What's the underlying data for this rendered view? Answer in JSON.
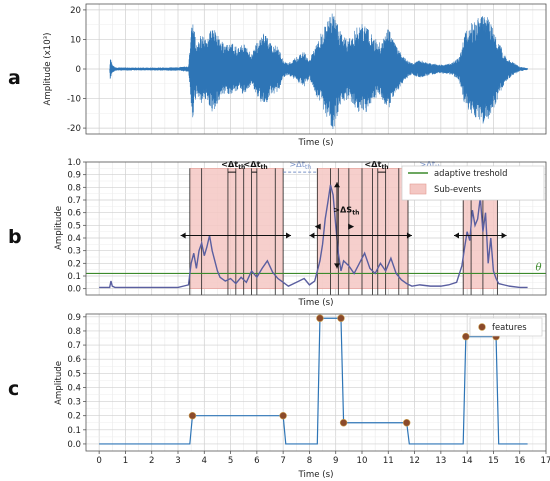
{
  "chart_data": [
    {
      "panel": "a",
      "type": "line",
      "xlabel": "Time (s)",
      "ylabel": "Amplitude (x10³)",
      "ylim": [
        -22,
        22
      ],
      "yticks": [
        -20,
        -10,
        0,
        10,
        20
      ],
      "xlim": [
        -0.5,
        17
      ],
      "grid": true,
      "series": [
        {
          "color": "#2e75b6",
          "envelope": [
            [
              0.4,
              0.0
            ],
            [
              0.42,
              4.5
            ],
            [
              0.5,
              1.5
            ],
            [
              0.6,
              0.6
            ],
            [
              1.0,
              0.5
            ],
            [
              2.0,
              0.5
            ],
            [
              3.0,
              0.6
            ],
            [
              3.4,
              1.0
            ],
            [
              3.55,
              18.0
            ],
            [
              3.7,
              8.0
            ],
            [
              3.9,
              12.0
            ],
            [
              4.1,
              10.0
            ],
            [
              4.3,
              15.0
            ],
            [
              4.5,
              12.0
            ],
            [
              4.8,
              8.0
            ],
            [
              5.0,
              9.0
            ],
            [
              5.3,
              7.0
            ],
            [
              5.5,
              9.0
            ],
            [
              5.8,
              5.0
            ],
            [
              6.0,
              9.0
            ],
            [
              6.3,
              13.0
            ],
            [
              6.5,
              9.0
            ],
            [
              6.8,
              8.0
            ],
            [
              7.0,
              3.0
            ],
            [
              7.2,
              2.0
            ],
            [
              7.5,
              4.0
            ],
            [
              7.8,
              6.0
            ],
            [
              8.0,
              3.0
            ],
            [
              8.2,
              8.0
            ],
            [
              8.5,
              13.0
            ],
            [
              8.7,
              17.0
            ],
            [
              8.9,
              21.0
            ],
            [
              9.05,
              16.0
            ],
            [
              9.2,
              12.0
            ],
            [
              9.5,
              10.0
            ],
            [
              9.8,
              14.0
            ],
            [
              10.1,
              16.0
            ],
            [
              10.4,
              11.0
            ],
            [
              10.7,
              9.0
            ],
            [
              11.0,
              14.0
            ],
            [
              11.3,
              8.0
            ],
            [
              11.6,
              4.0
            ],
            [
              11.9,
              2.0
            ],
            [
              12.2,
              3.0
            ],
            [
              12.6,
              2.0
            ],
            [
              13.0,
              1.5
            ],
            [
              13.4,
              2.0
            ],
            [
              13.7,
              4.0
            ],
            [
              13.9,
              12.0
            ],
            [
              14.2,
              16.0
            ],
            [
              14.5,
              19.0
            ],
            [
              14.8,
              18.0
            ],
            [
              15.0,
              14.0
            ],
            [
              15.2,
              9.0
            ],
            [
              15.5,
              4.0
            ],
            [
              15.8,
              2.0
            ],
            [
              16.0,
              0.8
            ],
            [
              16.3,
              0.3
            ]
          ]
        }
      ]
    },
    {
      "panel": "b",
      "type": "line",
      "xlabel": "Time (s)",
      "ylabel": "Amplitude",
      "ylim": [
        -0.05,
        1.0
      ],
      "yticks": [
        0.0,
        0.1,
        0.2,
        0.3,
        0.4,
        0.5,
        0.6,
        0.7,
        0.8,
        0.9,
        1.0
      ],
      "xlim": [
        -0.5,
        17
      ],
      "grid": true,
      "legend": {
        "placement": "top-right",
        "entries": [
          {
            "label": "adaptive treshold",
            "marker": "line",
            "color": "#3c8a2c"
          },
          {
            "label": "Sub-events",
            "marker": "patch",
            "color": "#f4c7c3"
          }
        ]
      },
      "threshold": {
        "value": 0.12,
        "label": "θ",
        "color": "#3c8a2c"
      },
      "subevents": [
        {
          "start": 3.45,
          "end": 7.0
        },
        {
          "start": 8.3,
          "end": 11.75
        },
        {
          "start": 13.85,
          "end": 15.15
        }
      ],
      "event_lines": [
        3.45,
        3.9,
        4.9,
        5.2,
        5.5,
        5.8,
        6.0,
        6.7,
        7.0,
        8.3,
        8.8,
        9.1,
        9.5,
        10.0,
        10.4,
        10.6,
        10.9,
        11.4,
        11.75,
        13.85,
        14.15,
        14.6,
        15.15
      ],
      "series": [
        {
          "color": "#5a5fa0",
          "x": [
            0.0,
            0.4,
            0.45,
            0.5,
            0.6,
            1.0,
            2.0,
            3.0,
            3.4,
            3.5,
            3.6,
            3.7,
            3.8,
            3.9,
            4.0,
            4.1,
            4.2,
            4.3,
            4.4,
            4.5,
            4.6,
            4.8,
            5.0,
            5.2,
            5.4,
            5.6,
            5.8,
            6.0,
            6.2,
            6.4,
            6.6,
            6.8,
            7.0,
            7.2,
            7.5,
            7.8,
            8.0,
            8.2,
            8.4,
            8.5,
            8.6,
            8.7,
            8.8,
            8.9,
            9.0,
            9.1,
            9.2,
            9.3,
            9.5,
            9.7,
            9.9,
            10.1,
            10.3,
            10.5,
            10.7,
            10.9,
            11.1,
            11.3,
            11.5,
            11.7,
            11.9,
            12.2,
            12.6,
            13.0,
            13.3,
            13.6,
            13.8,
            13.9,
            14.0,
            14.1,
            14.2,
            14.3,
            14.4,
            14.5,
            14.6,
            14.7,
            14.8,
            14.9,
            15.0,
            15.1,
            15.2,
            15.4,
            15.6,
            16.0,
            16.3
          ],
          "y": [
            0.01,
            0.01,
            0.06,
            0.02,
            0.01,
            0.01,
            0.01,
            0.01,
            0.03,
            0.2,
            0.28,
            0.16,
            0.3,
            0.36,
            0.26,
            0.33,
            0.42,
            0.3,
            0.22,
            0.14,
            0.09,
            0.06,
            0.08,
            0.04,
            0.09,
            0.05,
            0.14,
            0.09,
            0.16,
            0.22,
            0.13,
            0.08,
            0.05,
            0.02,
            0.05,
            0.08,
            0.03,
            0.06,
            0.22,
            0.35,
            0.55,
            0.68,
            0.82,
            0.74,
            0.5,
            0.28,
            0.14,
            0.22,
            0.18,
            0.12,
            0.2,
            0.28,
            0.16,
            0.12,
            0.2,
            0.14,
            0.24,
            0.12,
            0.07,
            0.04,
            0.02,
            0.03,
            0.02,
            0.02,
            0.03,
            0.05,
            0.18,
            0.32,
            0.45,
            0.38,
            0.62,
            0.5,
            0.55,
            0.72,
            0.45,
            0.6,
            0.2,
            0.4,
            0.14,
            0.08,
            0.04,
            0.03,
            0.02,
            0.01,
            0.01
          ]
        }
      ],
      "annotations": [
        {
          "text": "<Δt",
          "sub": "th",
          "x": 5.1,
          "y": 0.96,
          "style": "solid"
        },
        {
          "text": "<Δt",
          "sub": "th",
          "x": 5.95,
          "y": 0.96,
          "style": "solid"
        },
        {
          "text": ">Δt",
          "sub": "th",
          "x": 7.65,
          "y": 0.96,
          "style": "dashed"
        },
        {
          "text": "<Δt",
          "sub": "th",
          "x": 10.55,
          "y": 0.96,
          "style": "solid"
        },
        {
          "text": ">Δt",
          "sub": "th",
          "x": 12.6,
          "y": 0.96,
          "style": "dashed"
        },
        {
          "text": ">ΔS",
          "sub": "th",
          "x": 9.4,
          "y": 0.6,
          "style": "solid"
        }
      ]
    },
    {
      "panel": "c",
      "type": "line",
      "xlabel": "Time (s)",
      "ylabel": "Amplitude",
      "ylim": [
        -0.05,
        0.92
      ],
      "yticks": [
        0.0,
        0.1,
        0.2,
        0.3,
        0.4,
        0.5,
        0.6,
        0.7,
        0.8,
        0.9
      ],
      "xlim": [
        -0.5,
        17
      ],
      "xticks": [
        0,
        1,
        2,
        3,
        4,
        5,
        6,
        7,
        8,
        9,
        10,
        11,
        12,
        13,
        14,
        15,
        16,
        17
      ],
      "grid": true,
      "legend": {
        "placement": "top-right",
        "entries": [
          {
            "label": "features",
            "marker": "dot",
            "color": "#8b4a2b"
          }
        ]
      },
      "series": [
        {
          "color": "#2e75b6",
          "x": [
            0.0,
            3.45,
            3.55,
            7.0,
            7.1,
            8.3,
            8.4,
            9.2,
            9.3,
            11.7,
            11.8,
            13.85,
            13.95,
            15.1,
            15.2,
            16.3
          ],
          "y": [
            0.0,
            0.0,
            0.2,
            0.2,
            0.0,
            0.0,
            0.89,
            0.89,
            0.15,
            0.15,
            0.0,
            0.0,
            0.76,
            0.76,
            0.0,
            0.0
          ]
        }
      ],
      "features": [
        {
          "x": 3.55,
          "y": 0.2
        },
        {
          "x": 7.0,
          "y": 0.2
        },
        {
          "x": 8.4,
          "y": 0.89
        },
        {
          "x": 9.2,
          "y": 0.89
        },
        {
          "x": 9.3,
          "y": 0.15
        },
        {
          "x": 11.7,
          "y": 0.15
        },
        {
          "x": 13.95,
          "y": 0.76
        },
        {
          "x": 15.1,
          "y": 0.76
        }
      ]
    }
  ]
}
